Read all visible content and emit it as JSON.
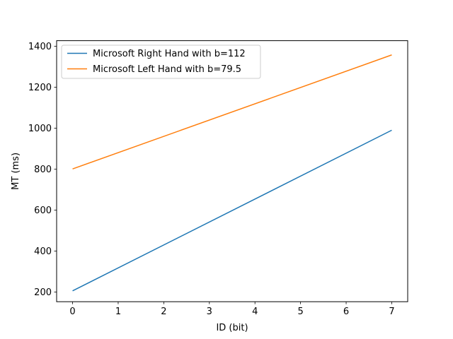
{
  "chart_data": {
    "type": "line",
    "xlabel": "ID (bit)",
    "ylabel": "MT (ms)",
    "xlim": [
      -0.35,
      7.35
    ],
    "ylim": [
      153,
      1427
    ],
    "xticks": [
      0,
      1,
      2,
      3,
      4,
      5,
      6,
      7
    ],
    "yticks": [
      200,
      400,
      600,
      800,
      1000,
      1200,
      1400
    ],
    "grid": false,
    "legend_position": "upper-left",
    "series": [
      {
        "name": "Microsoft Right Hand with b=112",
        "color": "#1f77b4",
        "x": [
          0,
          7
        ],
        "y": [
          206,
          990
        ]
      },
      {
        "name": "Microsoft Left Hand with b=79.5",
        "color": "#ff7f0e",
        "x": [
          0,
          7
        ],
        "y": [
          801,
          1357.5
        ]
      }
    ]
  }
}
